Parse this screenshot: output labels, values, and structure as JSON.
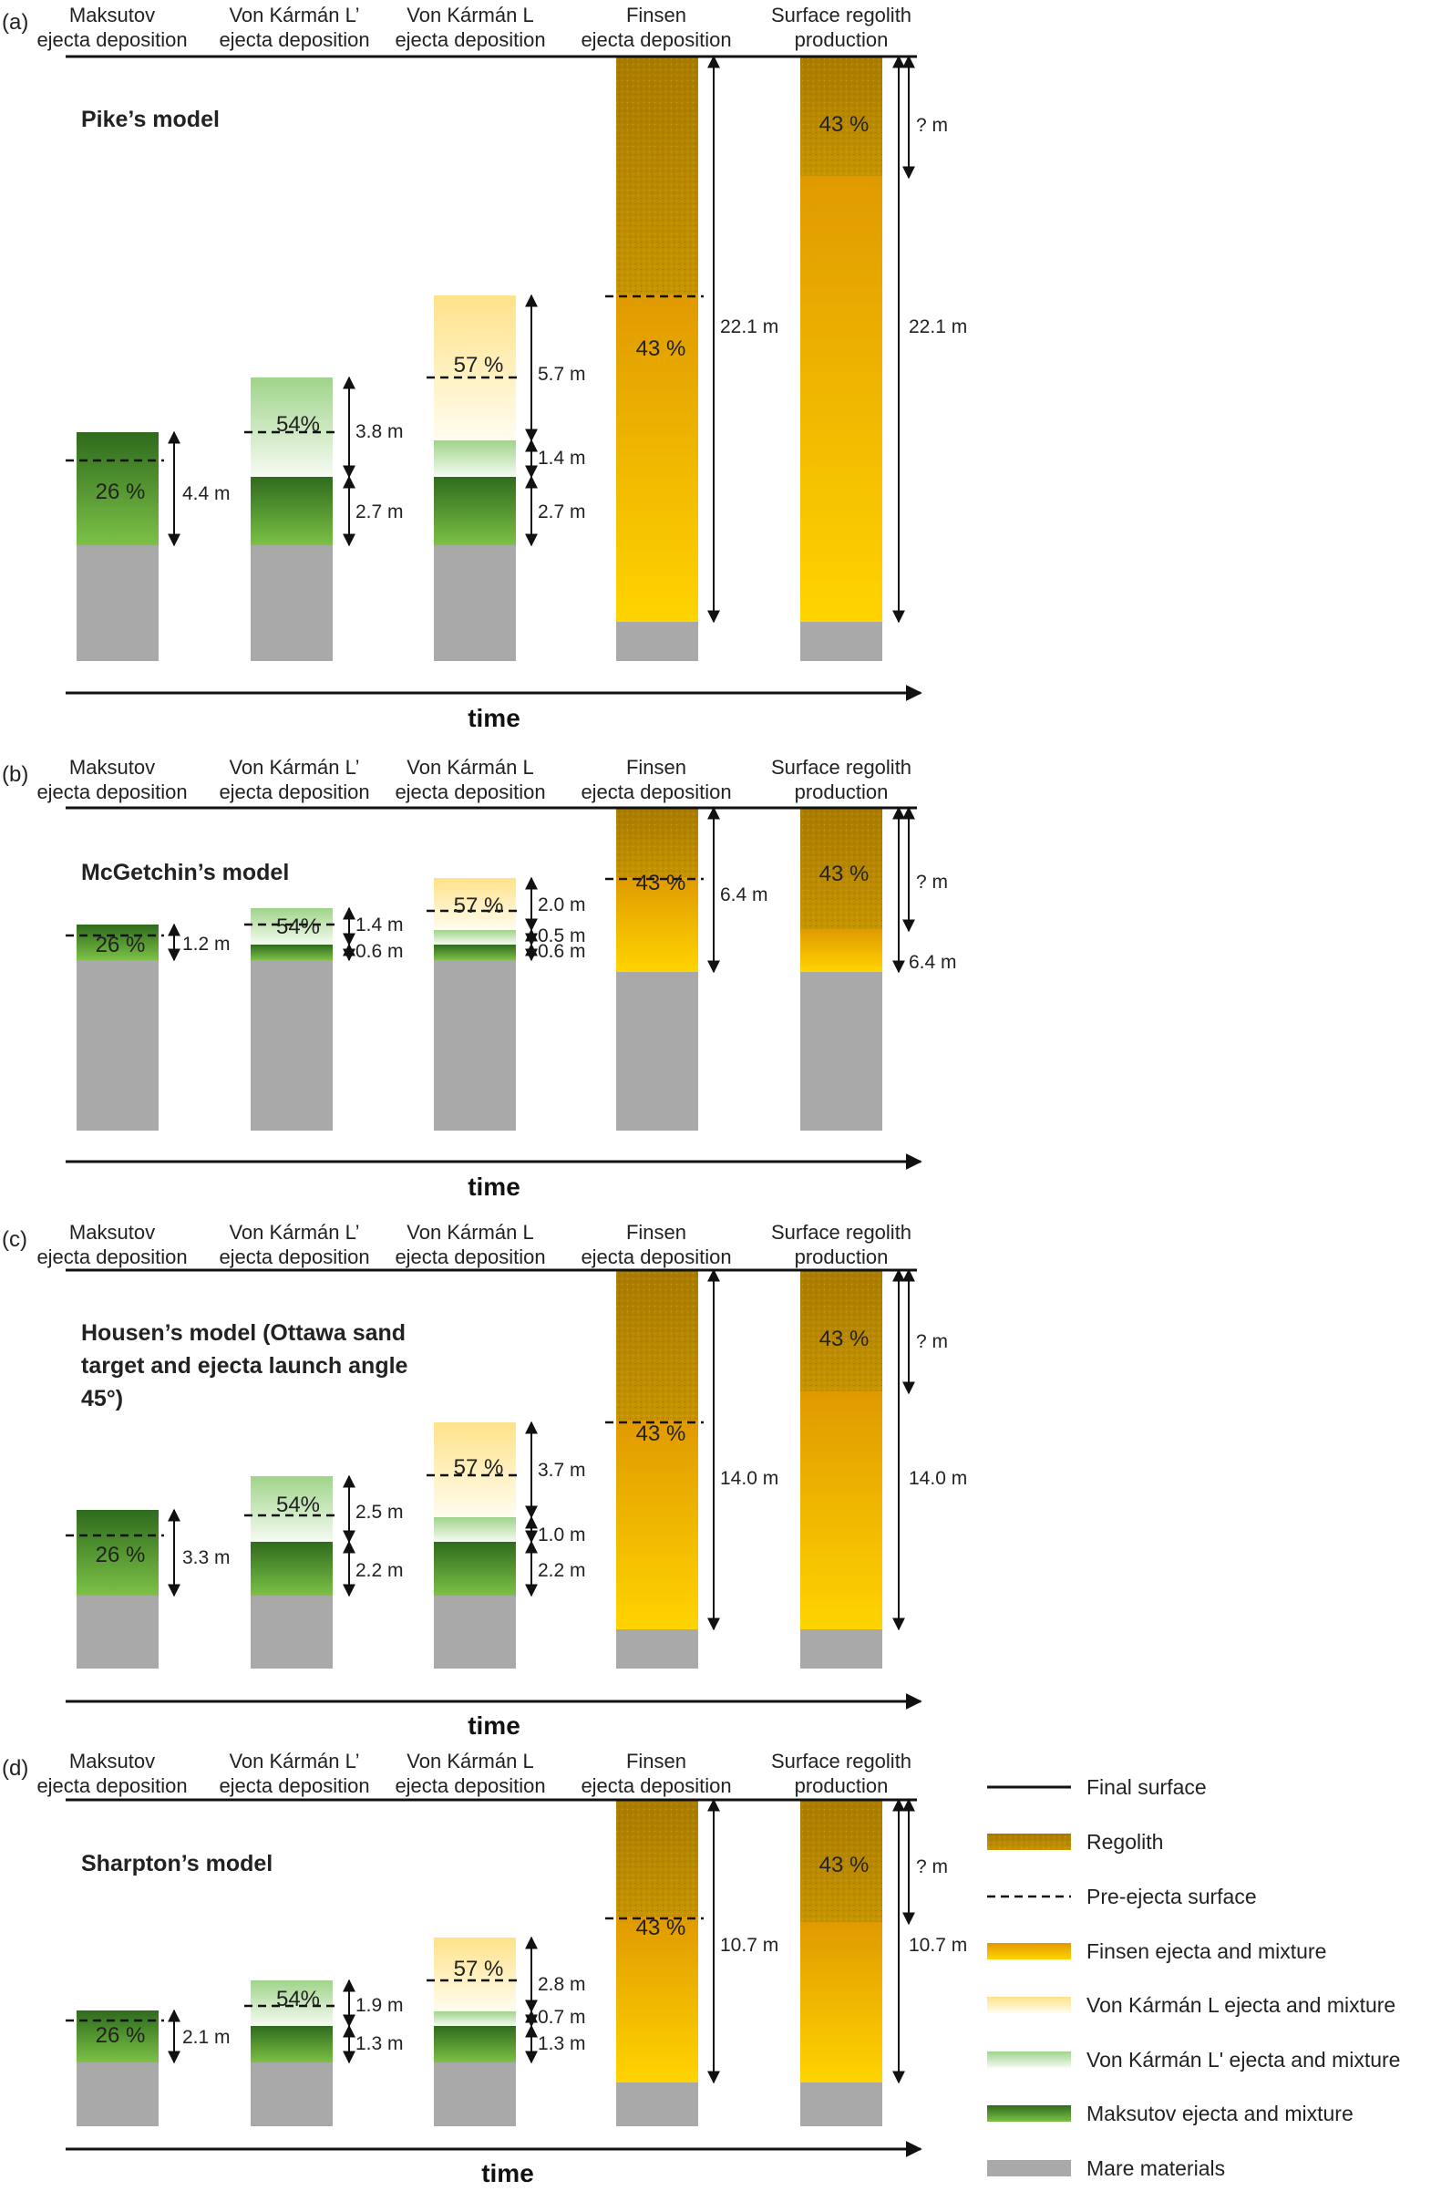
{
  "columns": [
    {
      "line1": "Maksutov",
      "line2": "ejecta deposition"
    },
    {
      "line1": "Von Kármán L’",
      "line2": "ejecta deposition"
    },
    {
      "line1": "Von Kármán L",
      "line2": "ejecta deposition"
    },
    {
      "line1": "Finsen",
      "line2": "ejecta deposition"
    },
    {
      "line1": "Surface regolith",
      "line2": "production"
    }
  ],
  "time_label": "time",
  "percents": {
    "maksutov": "26 %",
    "vkl_prime": "54%",
    "vkl": "57 %",
    "finsen": "43 %",
    "regolith": "43 %"
  },
  "panels": [
    {
      "tag": "(a)",
      "model": [
        "Pike’s model"
      ],
      "dims": {
        "mak": "4.4 m",
        "vlp_top": "3.8 m",
        "vlp_bot": "2.7 m",
        "vl_top": "5.7 m",
        "vl_mid": "1.4 m",
        "vl_bot": "2.7 m",
        "fin": "22.1 m",
        "sur_top": "? m",
        "sur_bot": "22.1 m"
      }
    },
    {
      "tag": "(b)",
      "model": [
        "McGetchin’s model"
      ],
      "dims": {
        "mak": "1.2 m",
        "vlp_top": "1.4 m",
        "vlp_bot": "0.6 m",
        "vl_top": "2.0 m",
        "vl_mid": "0.5 m",
        "vl_bot": "0.6 m",
        "fin": "6.4 m",
        "sur_top": "? m",
        "sur_bot": "6.4 m"
      }
    },
    {
      "tag": "(c)",
      "model": [
        "Housen’s model (Ottawa sand",
        "target and ejecta launch angle",
        "45°)"
      ],
      "dims": {
        "mak": "3.3 m",
        "vlp_top": "2.5 m",
        "vlp_bot": "2.2 m",
        "vl_top": "3.7 m",
        "vl_mid": "1.0 m",
        "vl_bot": "2.2 m",
        "fin": "14.0 m",
        "sur_top": "? m",
        "sur_bot": "14.0 m"
      }
    },
    {
      "tag": "(d)",
      "model": [
        "Sharpton’s model"
      ],
      "dims": {
        "mak": "2.1 m",
        "vlp_top": "1.9 m",
        "vlp_bot": "1.3 m",
        "vl_top": "2.8 m",
        "vl_mid": "0.7 m",
        "vl_bot": "1.3 m",
        "fin": "10.7 m",
        "sur_top": "? m",
        "sur_bot": "10.7 m"
      }
    }
  ],
  "legend": [
    {
      "key": "final",
      "label": "Final surface"
    },
    {
      "key": "regolith",
      "label": "Regolith"
    },
    {
      "key": "pre",
      "label": "Pre-ejecta surface"
    },
    {
      "key": "finsen",
      "label": "Finsen ejecta and mixture"
    },
    {
      "key": "vkl",
      "label": "Von Kármán L ejecta and mixture"
    },
    {
      "key": "vklp",
      "label": "Von Kármán L' ejecta and mixture"
    },
    {
      "key": "mak",
      "label": "Maksutov ejecta and mixture"
    },
    {
      "key": "mare",
      "label": "Mare materials"
    }
  ],
  "colors": {
    "mare": "#a9a9a9",
    "regolith_top": "#a87a00",
    "regolith_bot": "#c79500",
    "finsen_top": "#e09a00",
    "finsen_bot": "#ffd400",
    "vkl_top": "#ffe289",
    "vkl_bot": "#fffdf0",
    "vklp_top": "#9fd48a",
    "vklp_bot": "#f6fbf2",
    "mak_top": "#2e6b1d",
    "mak_bot": "#7cc146"
  }
}
